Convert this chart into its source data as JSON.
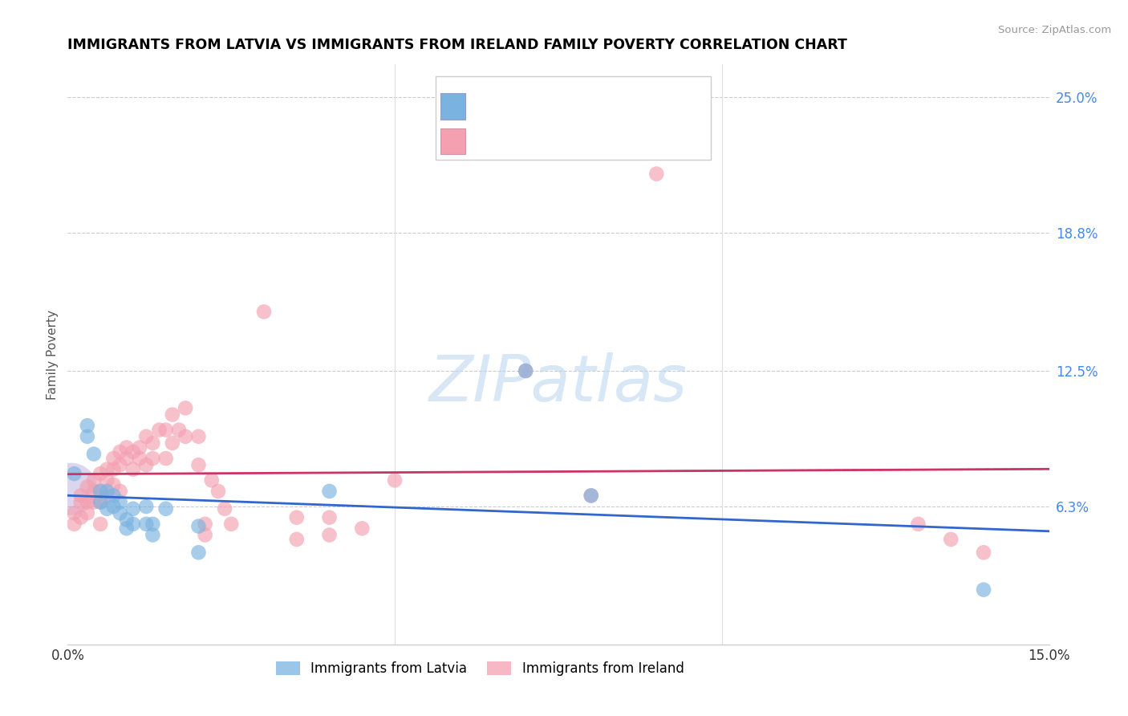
{
  "title": "IMMIGRANTS FROM LATVIA VS IMMIGRANTS FROM IRELAND FAMILY POVERTY CORRELATION CHART",
  "source": "Source: ZipAtlas.com",
  "ylabel": "Family Poverty",
  "legend_latvia": "Immigrants from Latvia",
  "legend_ireland": "Immigrants from Ireland",
  "xlim": [
    0.0,
    0.15
  ],
  "ylim": [
    0.0,
    0.265
  ],
  "yticks": [
    0.063,
    0.125,
    0.188,
    0.25
  ],
  "ytick_labels": [
    "6.3%",
    "12.5%",
    "18.8%",
    "25.0%"
  ],
  "color_latvia": "#7ab3e0",
  "color_ireland": "#f4a0b0",
  "trendline_latvia_color": "#3366cc",
  "trendline_ireland_color": "#cc3366",
  "watermark": "ZIPatlas",
  "latvia_points": [
    [
      0.001,
      0.078
    ],
    [
      0.003,
      0.1
    ],
    [
      0.003,
      0.095
    ],
    [
      0.004,
      0.087
    ],
    [
      0.005,
      0.07
    ],
    [
      0.005,
      0.065
    ],
    [
      0.006,
      0.07
    ],
    [
      0.006,
      0.062
    ],
    [
      0.007,
      0.063
    ],
    [
      0.007,
      0.068
    ],
    [
      0.008,
      0.065
    ],
    [
      0.008,
      0.06
    ],
    [
      0.009,
      0.057
    ],
    [
      0.009,
      0.053
    ],
    [
      0.01,
      0.062
    ],
    [
      0.01,
      0.055
    ],
    [
      0.012,
      0.063
    ],
    [
      0.012,
      0.055
    ],
    [
      0.013,
      0.055
    ],
    [
      0.013,
      0.05
    ],
    [
      0.015,
      0.062
    ],
    [
      0.02,
      0.054
    ],
    [
      0.02,
      0.042
    ],
    [
      0.04,
      0.07
    ],
    [
      0.07,
      0.125
    ],
    [
      0.08,
      0.068
    ],
    [
      0.14,
      0.025
    ]
  ],
  "ireland_points": [
    [
      0.001,
      0.055
    ],
    [
      0.001,
      0.06
    ],
    [
      0.002,
      0.068
    ],
    [
      0.002,
      0.065
    ],
    [
      0.002,
      0.058
    ],
    [
      0.003,
      0.072
    ],
    [
      0.003,
      0.065
    ],
    [
      0.003,
      0.06
    ],
    [
      0.004,
      0.075
    ],
    [
      0.004,
      0.07
    ],
    [
      0.004,
      0.065
    ],
    [
      0.005,
      0.078
    ],
    [
      0.005,
      0.07
    ],
    [
      0.005,
      0.065
    ],
    [
      0.005,
      0.055
    ],
    [
      0.006,
      0.08
    ],
    [
      0.006,
      0.075
    ],
    [
      0.006,
      0.068
    ],
    [
      0.007,
      0.085
    ],
    [
      0.007,
      0.08
    ],
    [
      0.007,
      0.073
    ],
    [
      0.008,
      0.088
    ],
    [
      0.008,
      0.082
    ],
    [
      0.008,
      0.07
    ],
    [
      0.009,
      0.09
    ],
    [
      0.009,
      0.085
    ],
    [
      0.01,
      0.088
    ],
    [
      0.01,
      0.08
    ],
    [
      0.011,
      0.09
    ],
    [
      0.011,
      0.085
    ],
    [
      0.012,
      0.095
    ],
    [
      0.012,
      0.082
    ],
    [
      0.013,
      0.092
    ],
    [
      0.013,
      0.085
    ],
    [
      0.014,
      0.098
    ],
    [
      0.015,
      0.098
    ],
    [
      0.015,
      0.085
    ],
    [
      0.016,
      0.105
    ],
    [
      0.016,
      0.092
    ],
    [
      0.017,
      0.098
    ],
    [
      0.018,
      0.108
    ],
    [
      0.018,
      0.095
    ],
    [
      0.02,
      0.095
    ],
    [
      0.02,
      0.082
    ],
    [
      0.021,
      0.055
    ],
    [
      0.021,
      0.05
    ],
    [
      0.022,
      0.075
    ],
    [
      0.023,
      0.07
    ],
    [
      0.024,
      0.062
    ],
    [
      0.025,
      0.055
    ],
    [
      0.03,
      0.152
    ],
    [
      0.035,
      0.058
    ],
    [
      0.035,
      0.048
    ],
    [
      0.04,
      0.058
    ],
    [
      0.04,
      0.05
    ],
    [
      0.045,
      0.053
    ],
    [
      0.05,
      0.075
    ],
    [
      0.07,
      0.125
    ],
    [
      0.08,
      0.068
    ],
    [
      0.09,
      0.215
    ],
    [
      0.13,
      0.055
    ],
    [
      0.135,
      0.048
    ],
    [
      0.14,
      0.042
    ]
  ]
}
